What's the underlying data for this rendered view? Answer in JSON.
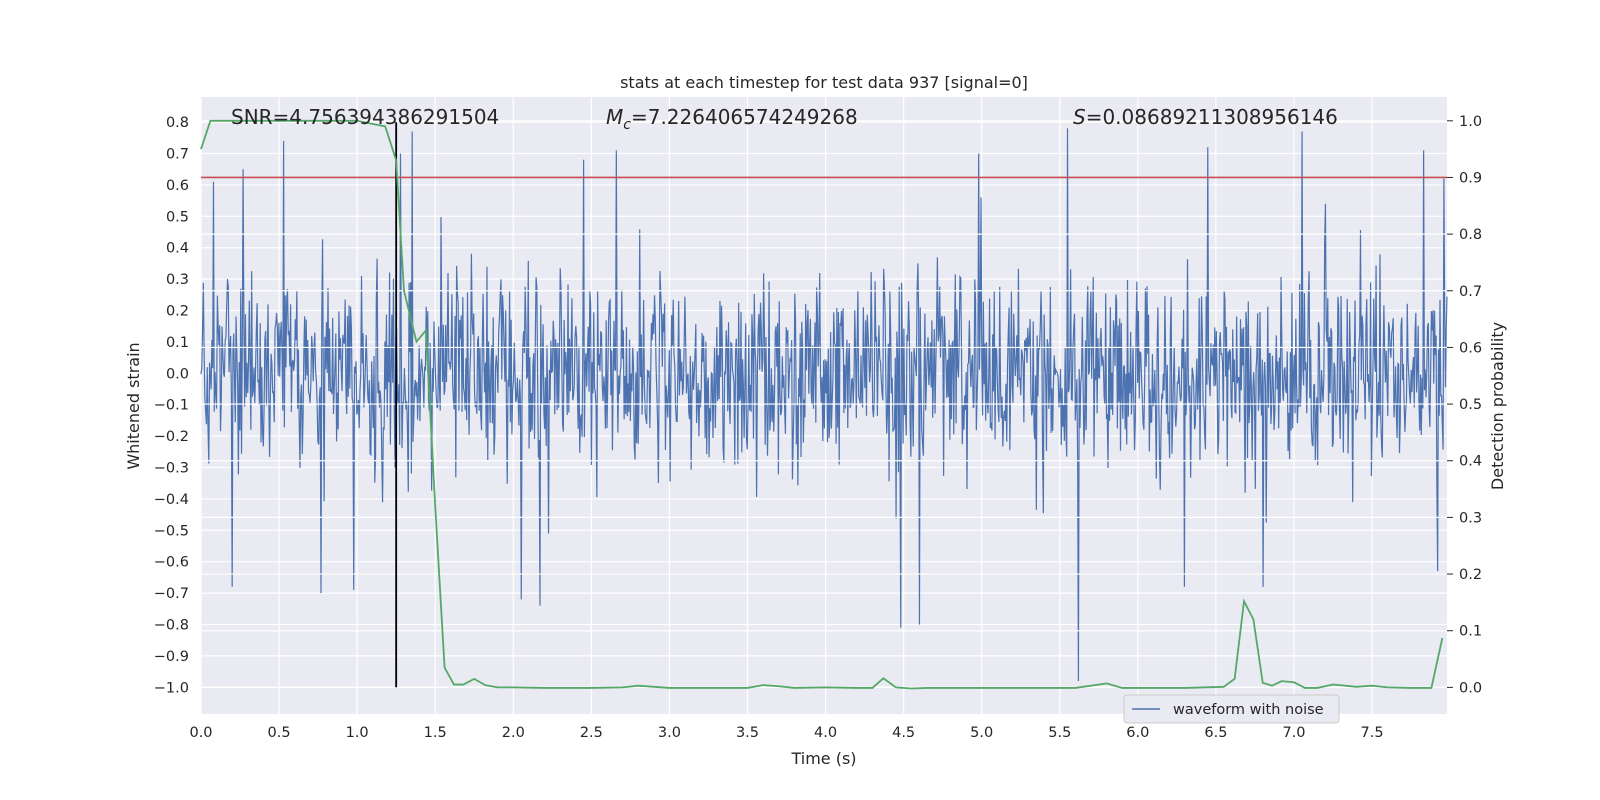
{
  "chart_data": {
    "type": "line",
    "title": "stats at each timestep for test data 937 [signal=0]",
    "xlabel": "Time (s)",
    "ylabel": "Whitened strain",
    "ylabel_right": "Detection probability",
    "xlim": [
      0.0,
      7.98
    ],
    "ylim": [
      -1.085,
      0.88
    ],
    "ylim_right": [
      -0.047,
      1.042
    ],
    "x_ticks": [
      0.0,
      0.5,
      1.0,
      1.5,
      2.0,
      2.5,
      3.0,
      3.5,
      4.0,
      4.5,
      5.0,
      5.5,
      6.0,
      6.5,
      7.0,
      7.5
    ],
    "x_tick_labels": [
      "0.0",
      "0.5",
      "1.0",
      "1.5",
      "2.0",
      "2.5",
      "3.0",
      "3.5",
      "4.0",
      "4.5",
      "5.0",
      "5.5",
      "6.0",
      "6.5",
      "7.0",
      "7.5"
    ],
    "y_ticks": [
      0.8,
      0.7,
      0.6,
      0.5,
      0.4,
      0.3,
      0.2,
      0.1,
      0.0,
      -0.1,
      -0.2,
      -0.3,
      -0.4,
      -0.5,
      -0.6,
      -0.7,
      -0.8,
      -0.9,
      -1.0
    ],
    "y_tick_labels": [
      "0.8",
      "0.7",
      "0.6",
      "0.5",
      "0.4",
      "0.3",
      "0.2",
      "0.1",
      "0.0",
      "−0.1",
      "−0.2",
      "−0.3",
      "−0.4",
      "−0.5",
      "−0.6",
      "−0.7",
      "−0.8",
      "−0.9",
      "−1.0"
    ],
    "y2_ticks": [
      1.0,
      0.9,
      0.8,
      0.7,
      0.6,
      0.5,
      0.4,
      0.3,
      0.2,
      0.1,
      0.0
    ],
    "y2_tick_labels": [
      "1.0",
      "0.9",
      "0.8",
      "0.7",
      "0.6",
      "0.5",
      "0.4",
      "0.3",
      "0.2",
      "0.1",
      "0.0"
    ],
    "annotations": {
      "snr": "SNR=4.756394386291504",
      "mc_symbol": "M",
      "mc_subscript": "c",
      "mc_value": "=7.226406574249268",
      "s_symbol": "S",
      "s_value": "=0.08689211308956146"
    },
    "threshold": {
      "axis": "right",
      "value": 0.9,
      "color": "#c44e52"
    },
    "marker_line": {
      "x": 1.25,
      "y_from": -1.0,
      "y_to": 0.8,
      "color": "#000000"
    },
    "series": [
      {
        "name": "waveform with noise",
        "axis": "left",
        "color": "#4c72b0",
        "kind": "noise",
        "n_points": 1600,
        "typical_abs": 0.25,
        "max": 0.78,
        "min": -0.98,
        "peaks": [
          {
            "x": 0.08,
            "y": 0.61
          },
          {
            "x": 0.27,
            "y": 0.65
          },
          {
            "x": 0.53,
            "y": 0.74
          },
          {
            "x": 0.98,
            "y": 0.71
          },
          {
            "x": 1.28,
            "y": 0.7
          },
          {
            "x": 1.35,
            "y": 0.77
          },
          {
            "x": 2.45,
            "y": 0.68
          },
          {
            "x": 2.66,
            "y": 0.71
          },
          {
            "x": 4.98,
            "y": 0.7
          },
          {
            "x": 5.55,
            "y": 0.78
          },
          {
            "x": 6.45,
            "y": 0.72
          },
          {
            "x": 7.05,
            "y": 0.77
          },
          {
            "x": 7.83,
            "y": 0.71
          },
          {
            "x": 7.96,
            "y": 0.62
          }
        ],
        "troughs": [
          {
            "x": 0.2,
            "y": -0.68
          },
          {
            "x": 0.77,
            "y": -0.7
          },
          {
            "x": 0.98,
            "y": -0.69
          },
          {
            "x": 2.05,
            "y": -0.72
          },
          {
            "x": 2.17,
            "y": -0.74
          },
          {
            "x": 4.48,
            "y": -0.81
          },
          {
            "x": 4.6,
            "y": -0.8
          },
          {
            "x": 5.62,
            "y": -0.98
          },
          {
            "x": 6.3,
            "y": -0.68
          },
          {
            "x": 6.8,
            "y": -0.68
          },
          {
            "x": 7.92,
            "y": -0.63
          }
        ]
      },
      {
        "name": "detection probability",
        "axis": "right",
        "color": "#55a868",
        "x": [
          0.0,
          0.06,
          0.3,
          1.0,
          1.18,
          1.25,
          1.3,
          1.38,
          1.44,
          1.5,
          1.56,
          1.62,
          1.68,
          1.75,
          1.82,
          1.9,
          2.0,
          2.2,
          2.5,
          2.7,
          2.8,
          3.0,
          3.3,
          3.5,
          3.6,
          3.7,
          3.8,
          4.0,
          4.2,
          4.3,
          4.37,
          4.45,
          4.55,
          4.65,
          4.8,
          5.0,
          5.3,
          5.6,
          5.8,
          5.9,
          6.0,
          6.3,
          6.55,
          6.62,
          6.68,
          6.74,
          6.8,
          6.86,
          6.92,
          7.0,
          7.07,
          7.15,
          7.25,
          7.4,
          7.5,
          7.6,
          7.75,
          7.88,
          7.95
        ],
        "y": [
          0.95,
          1.0,
          1.0,
          1.0,
          0.99,
          0.93,
          0.7,
          0.61,
          0.63,
          0.32,
          0.035,
          0.005,
          0.005,
          0.015,
          0.004,
          0.0,
          0.0,
          -0.001,
          -0.001,
          0.0,
          0.003,
          -0.001,
          -0.001,
          -0.001,
          0.004,
          0.002,
          -0.001,
          0.0,
          -0.001,
          -0.001,
          0.016,
          0.0,
          -0.002,
          -0.001,
          -0.001,
          -0.001,
          -0.001,
          -0.001,
          0.007,
          -0.001,
          -0.001,
          -0.001,
          0.001,
          0.015,
          0.152,
          0.12,
          0.008,
          0.003,
          0.011,
          0.009,
          -0.001,
          -0.001,
          0.005,
          0.001,
          0.003,
          0.0,
          -0.001,
          -0.001,
          0.087
        ]
      }
    ],
    "legend": {
      "entries": [
        "waveform with noise"
      ],
      "location": "lower-right"
    }
  }
}
